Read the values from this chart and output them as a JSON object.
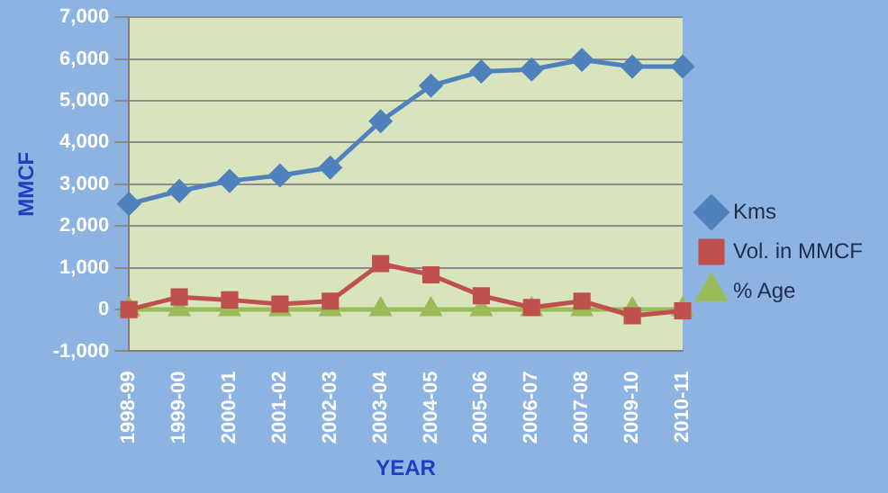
{
  "chart_data": {
    "type": "line",
    "xlabel": "YEAR",
    "ylabel": "MMCF",
    "categories": [
      "1998-99",
      "1999-00",
      "2000-01",
      "2001-02",
      "2002-03",
      "2003-04",
      "2004-05",
      "2005-06",
      "2006-07",
      "2007-08",
      "2009-10",
      "2010-11"
    ],
    "series": [
      {
        "name": "Kms",
        "color": "#4f81bd",
        "marker": "diamond",
        "values": [
          2530,
          2840,
          3080,
          3210,
          3400,
          4510,
          5360,
          5700,
          5750,
          5980,
          5820,
          5820
        ]
      },
      {
        "name": "Vol. in MMCF",
        "color": "#c0504d",
        "marker": "square",
        "values": [
          0,
          300,
          230,
          130,
          200,
          1100,
          830,
          330,
          50,
          200,
          -150,
          -30
        ]
      },
      {
        "name": "% Age",
        "color": "#9bbb59",
        "marker": "triangle",
        "values": [
          0,
          0,
          0,
          0,
          0,
          0,
          0,
          0,
          0,
          0,
          0,
          0
        ]
      }
    ],
    "ylim": [
      -1000,
      7000
    ],
    "yticks": [
      {
        "value": -1000,
        "label": "-1,000"
      },
      0,
      {
        "value": 1000,
        "label": "1,000"
      },
      {
        "value": 2000,
        "label": "2,000"
      },
      {
        "value": 3000,
        "label": "3,000"
      },
      {
        "value": 4000,
        "label": "4,000"
      },
      {
        "value": 5000,
        "label": "5,000"
      },
      {
        "value": 6000,
        "label": "6,000"
      },
      {
        "value": 7000,
        "label": "7,000"
      }
    ],
    "grid": "y",
    "legend": "right",
    "line_style": "solid"
  }
}
